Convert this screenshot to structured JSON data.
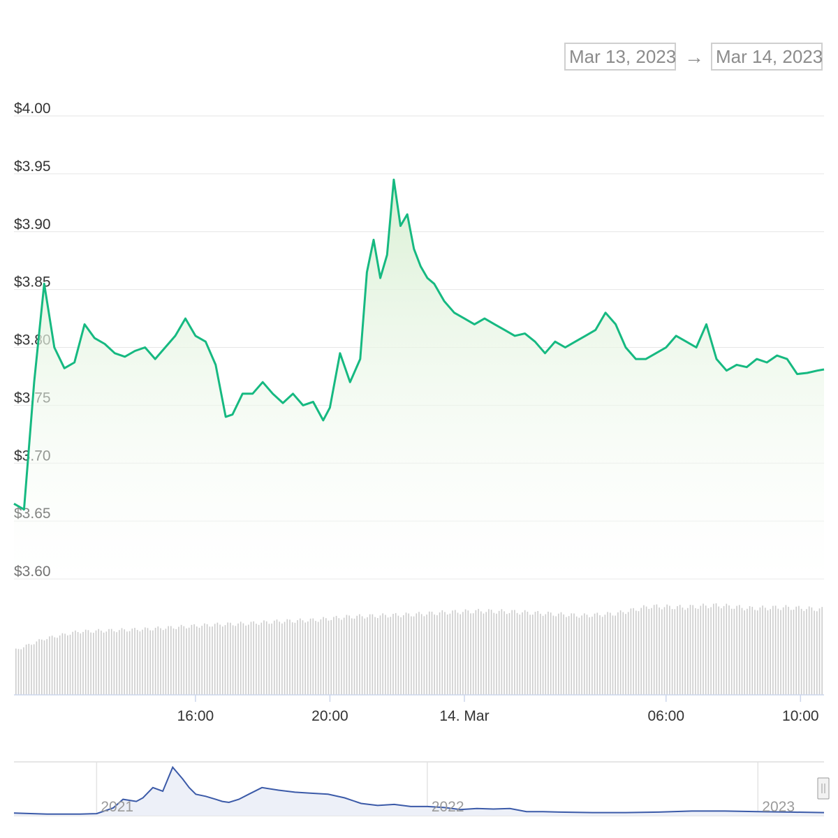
{
  "range_selector": {
    "from": "Mar 13, 2023",
    "arrow": "→",
    "to": "Mar 14, 2023"
  },
  "colors": {
    "price_line": "#16b981",
    "area_fill": "#dff2da",
    "volume_bar": "#cccccc",
    "grid": "#e6e6e6",
    "navigator_line": "#3b5aa8",
    "navigator_fill": "#edf0f8"
  },
  "chart_data": [
    {
      "type": "area",
      "y_ticks": [
        "$4.00",
        "$3.95",
        "$3.90",
        "$3.85",
        "$3.80",
        "$3.75",
        "$3.70",
        "$3.65",
        "$3.60"
      ],
      "ylim": [
        3.6,
        4.0
      ],
      "x_ticks": [
        "16:00",
        "20:00",
        "14. Mar",
        "06:00",
        "10:00"
      ],
      "x_tick_hours": [
        16,
        20,
        24,
        30,
        34
      ],
      "xlim_hours": [
        10.6,
        34.7
      ],
      "grid": true,
      "legend": "none",
      "price": {
        "x_hours": [
          10.6,
          10.9,
          11.2,
          11.5,
          11.8,
          12.1,
          12.4,
          12.7,
          13.0,
          13.3,
          13.6,
          13.9,
          14.2,
          14.5,
          14.8,
          15.1,
          15.4,
          15.7,
          16.0,
          16.3,
          16.6,
          16.9,
          17.1,
          17.4,
          17.7,
          18.0,
          18.3,
          18.6,
          18.9,
          19.2,
          19.5,
          19.8,
          20.0,
          20.3,
          20.6,
          20.9,
          21.1,
          21.3,
          21.5,
          21.7,
          21.9,
          22.1,
          22.3,
          22.5,
          22.7,
          22.9,
          23.1,
          23.4,
          23.7,
          24.0,
          24.3,
          24.6,
          24.9,
          25.2,
          25.5,
          25.8,
          26.1,
          26.4,
          26.7,
          27.0,
          27.3,
          27.6,
          27.9,
          28.2,
          28.5,
          28.8,
          29.1,
          29.4,
          29.7,
          30.0,
          30.3,
          30.6,
          30.9,
          31.2,
          31.5,
          31.8,
          32.1,
          32.4,
          32.7,
          33.0,
          33.3,
          33.6,
          33.9,
          34.2,
          34.5,
          34.7
        ],
        "values": [
          3.665,
          3.66,
          3.77,
          3.855,
          3.8,
          3.782,
          3.787,
          3.82,
          3.808,
          3.803,
          3.795,
          3.792,
          3.797,
          3.8,
          3.79,
          3.8,
          3.81,
          3.825,
          3.81,
          3.805,
          3.785,
          3.74,
          3.742,
          3.76,
          3.76,
          3.77,
          3.76,
          3.752,
          3.76,
          3.75,
          3.753,
          3.737,
          3.748,
          3.795,
          3.77,
          3.79,
          3.865,
          3.893,
          3.86,
          3.88,
          3.945,
          3.905,
          3.915,
          3.885,
          3.87,
          3.86,
          3.855,
          3.84,
          3.83,
          3.825,
          3.82,
          3.825,
          3.82,
          3.815,
          3.81,
          3.812,
          3.805,
          3.795,
          3.805,
          3.8,
          3.805,
          3.81,
          3.815,
          3.83,
          3.82,
          3.8,
          3.79,
          3.79,
          3.795,
          3.8,
          3.81,
          3.805,
          3.8,
          3.82,
          3.79,
          3.78,
          3.785,
          3.783,
          3.79,
          3.787,
          3.793,
          3.79,
          3.777,
          3.778,
          3.78,
          3.781
        ]
      },
      "volume": {
        "x_hours": [
          10.6,
          11.5,
          12.5,
          13.5,
          14.5,
          15.5,
          16.5,
          17.5,
          18.5,
          19.5,
          20.5,
          21.5,
          22.5,
          23.5,
          24.5,
          25.5,
          26.5,
          27.5,
          28.5,
          29.5,
          30.5,
          31.5,
          32.5,
          33.5,
          34.7
        ],
        "relative_values": [
          0.46,
          0.58,
          0.65,
          0.66,
          0.67,
          0.69,
          0.71,
          0.72,
          0.74,
          0.75,
          0.78,
          0.79,
          0.8,
          0.82,
          0.83,
          0.82,
          0.8,
          0.78,
          0.8,
          0.87,
          0.86,
          0.88,
          0.85,
          0.86,
          0.84
        ]
      }
    },
    {
      "type": "line",
      "role": "navigator",
      "x_ticks": [
        "2021",
        "2022",
        "2023"
      ],
      "x_tick_years": [
        2021,
        2022,
        2023
      ],
      "xlim_years": [
        2020.75,
        2023.2
      ],
      "x_years": [
        2020.75,
        2020.85,
        2020.95,
        2021.0,
        2021.05,
        2021.08,
        2021.12,
        2021.14,
        2021.17,
        2021.2,
        2021.23,
        2021.26,
        2021.28,
        2021.3,
        2021.33,
        2021.36,
        2021.38,
        2021.4,
        2021.43,
        2021.46,
        2021.5,
        2021.55,
        2021.6,
        2021.65,
        2021.7,
        2021.75,
        2021.8,
        2021.85,
        2021.9,
        2021.95,
        2022.0,
        2022.05,
        2022.1,
        2022.15,
        2022.2,
        2022.25,
        2022.3,
        2022.35,
        2022.4,
        2022.5,
        2022.6,
        2022.7,
        2022.8,
        2022.9,
        2023.0,
        2023.1,
        2023.2
      ],
      "relative_values": [
        0.05,
        0.03,
        0.03,
        0.04,
        0.15,
        0.32,
        0.28,
        0.35,
        0.55,
        0.48,
        0.95,
        0.72,
        0.55,
        0.42,
        0.38,
        0.32,
        0.28,
        0.26,
        0.32,
        0.42,
        0.55,
        0.5,
        0.46,
        0.44,
        0.42,
        0.35,
        0.24,
        0.2,
        0.22,
        0.18,
        0.18,
        0.16,
        0.12,
        0.14,
        0.13,
        0.14,
        0.08,
        0.08,
        0.07,
        0.06,
        0.06,
        0.07,
        0.09,
        0.09,
        0.08,
        0.07,
        0.06
      ]
    }
  ]
}
